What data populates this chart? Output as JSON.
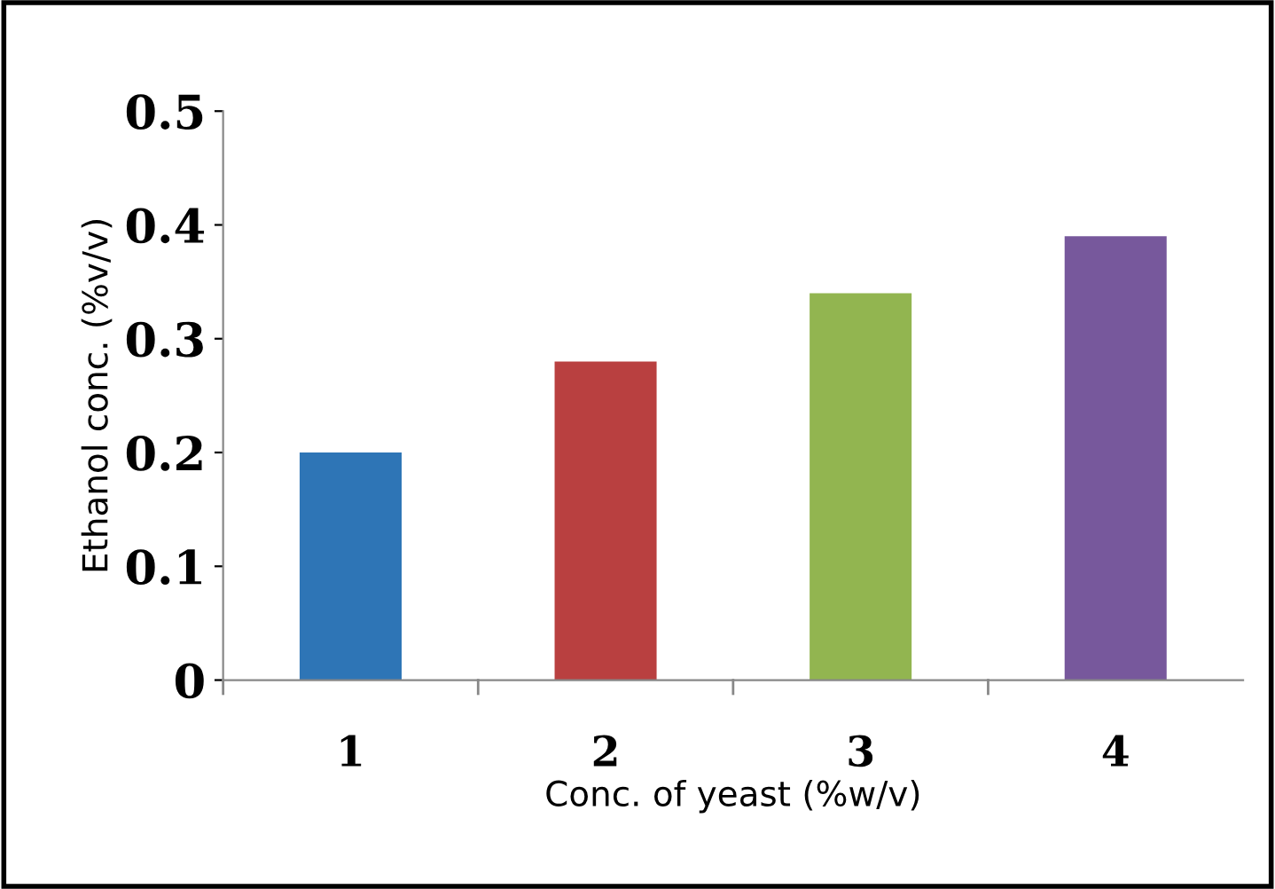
{
  "chart_data": {
    "type": "bar",
    "xlabel": "Conc. of yeast (%w/v)",
    "ylabel": "Ethanol conc. (%v/v)",
    "categories": [
      "1",
      "2",
      "3",
      "4"
    ],
    "values": [
      0.2,
      0.28,
      0.34,
      0.39
    ],
    "colors": [
      "#2e75b6",
      "#b94040",
      "#92b550",
      "#77589c"
    ],
    "ylim": [
      0,
      0.5
    ],
    "yticks": [
      {
        "value": 0,
        "label": "0"
      },
      0.1,
      0.2,
      0.3,
      0.4,
      0.5
    ],
    "grid": false,
    "legend": false
  }
}
